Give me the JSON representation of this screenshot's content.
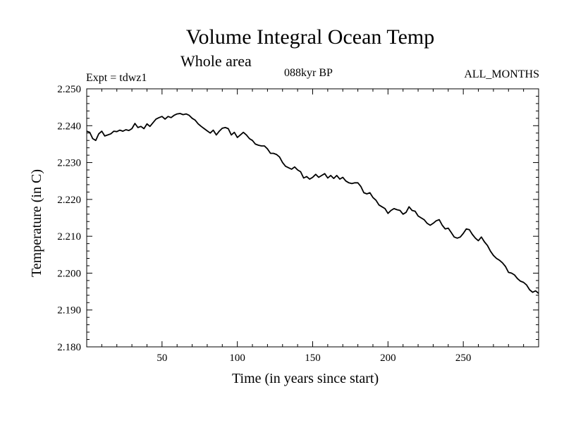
{
  "page": {
    "title": "Volume Integral Ocean Temp",
    "subtitle": "Whole area",
    "experiment": "Expt = tdwz1",
    "period": "088kyr BP",
    "months": "ALL_MONTHS"
  },
  "colors": {
    "line": "#000000",
    "axes": "#000000",
    "background": "#ffffff"
  },
  "chart_data": {
    "type": "line",
    "title": "Volume Integral Ocean Temp",
    "subtitle": "Whole area",
    "xlabel": "Time (in years since start)",
    "ylabel": "Temperature (in C)",
    "xlim": [
      0,
      300
    ],
    "ylim": [
      2.18,
      2.25
    ],
    "xticks": [
      50,
      100,
      150,
      200,
      250
    ],
    "xtick_labels": [
      "50",
      "100",
      "150",
      "200",
      "250"
    ],
    "yticks": [
      2.18,
      2.19,
      2.2,
      2.21,
      2.22,
      2.23,
      2.24,
      2.25
    ],
    "ytick_labels": [
      "2.180",
      "2.190",
      "2.200",
      "2.210",
      "2.220",
      "2.230",
      "2.240",
      "2.250"
    ],
    "grid": false,
    "legend": "none",
    "series": [
      {
        "x": [
          0,
          2,
          4,
          6,
          8,
          10,
          12,
          14,
          16,
          18,
          20,
          22,
          24,
          26,
          28,
          30,
          32,
          34,
          36,
          38,
          40,
          42,
          44,
          46,
          48,
          50,
          52,
          54,
          56,
          58,
          60,
          62,
          64,
          66,
          68,
          70,
          72,
          74,
          76,
          78,
          80,
          82,
          84,
          86,
          88,
          90,
          92,
          94,
          96,
          98,
          100,
          102,
          104,
          106,
          108,
          110,
          112,
          114,
          116,
          118,
          120,
          122,
          124,
          126,
          128,
          130,
          132,
          134,
          136,
          138,
          140,
          142,
          144,
          146,
          148,
          150,
          152,
          154,
          156,
          158,
          160,
          162,
          164,
          166,
          168,
          170,
          172,
          174,
          176,
          178,
          180,
          182,
          184,
          186,
          188,
          190,
          192,
          194,
          196,
          198,
          200,
          202,
          204,
          206,
          208,
          210,
          212,
          214,
          216,
          218,
          220,
          222,
          224,
          226,
          228,
          230,
          232,
          234,
          236,
          238,
          240,
          242,
          244,
          246,
          248,
          250,
          252,
          254,
          256,
          258,
          260,
          262,
          264,
          266,
          268,
          270,
          272,
          274,
          276,
          278,
          280,
          282,
          284,
          286,
          288,
          290,
          292,
          294,
          296,
          298,
          300
        ],
        "values": [
          2.2385,
          2.2382,
          2.2365,
          2.236,
          2.2378,
          2.2385,
          2.2372,
          2.2375,
          2.2378,
          2.2385,
          2.2384,
          2.2388,
          2.2385,
          2.2389,
          2.2387,
          2.2392,
          2.2406,
          2.2395,
          2.2398,
          2.2392,
          2.2405,
          2.2398,
          2.2408,
          2.2418,
          2.2422,
          2.2425,
          2.2418,
          2.2425,
          2.2422,
          2.2428,
          2.2432,
          2.2433,
          2.243,
          2.2432,
          2.2428,
          2.242,
          2.2415,
          2.2405,
          2.2398,
          2.2392,
          2.2386,
          2.238,
          2.2388,
          2.2375,
          2.2385,
          2.2393,
          2.2395,
          2.2392,
          2.2375,
          2.2382,
          2.2368,
          2.2375,
          2.2382,
          2.2375,
          2.2365,
          2.236,
          2.235,
          2.2347,
          2.2345,
          2.2345,
          2.2337,
          2.2325,
          2.2325,
          2.2322,
          2.2315,
          2.23,
          2.229,
          2.2286,
          2.2282,
          2.2288,
          2.228,
          2.2275,
          2.2258,
          2.2262,
          2.2255,
          2.226,
          2.2268,
          2.226,
          2.2265,
          2.227,
          2.2258,
          2.2265,
          2.2257,
          2.2265,
          2.2255,
          2.226,
          2.225,
          2.2245,
          2.2243,
          2.2245,
          2.2245,
          2.2235,
          2.2218,
          2.2215,
          2.2218,
          2.2205,
          2.2198,
          2.2185,
          2.218,
          2.2175,
          2.2162,
          2.217,
          2.2175,
          2.2172,
          2.217,
          2.216,
          2.2165,
          2.218,
          2.217,
          2.2168,
          2.2155,
          2.215,
          2.2145,
          2.2135,
          2.213,
          2.2135,
          2.2142,
          2.2145,
          2.213,
          2.212,
          2.2122,
          2.211,
          2.2098,
          2.2095,
          2.2098,
          2.2108,
          2.212,
          2.2118,
          2.2105,
          2.2095,
          2.2088,
          2.2098,
          2.2085,
          2.2075,
          2.206,
          2.2048,
          2.204,
          2.2035,
          2.2028,
          2.2018,
          2.2002,
          2.2,
          2.1995,
          2.1985,
          2.1978,
          2.1975,
          2.1968,
          2.1955,
          2.1948,
          2.1952,
          2.1945
        ]
      }
    ]
  }
}
